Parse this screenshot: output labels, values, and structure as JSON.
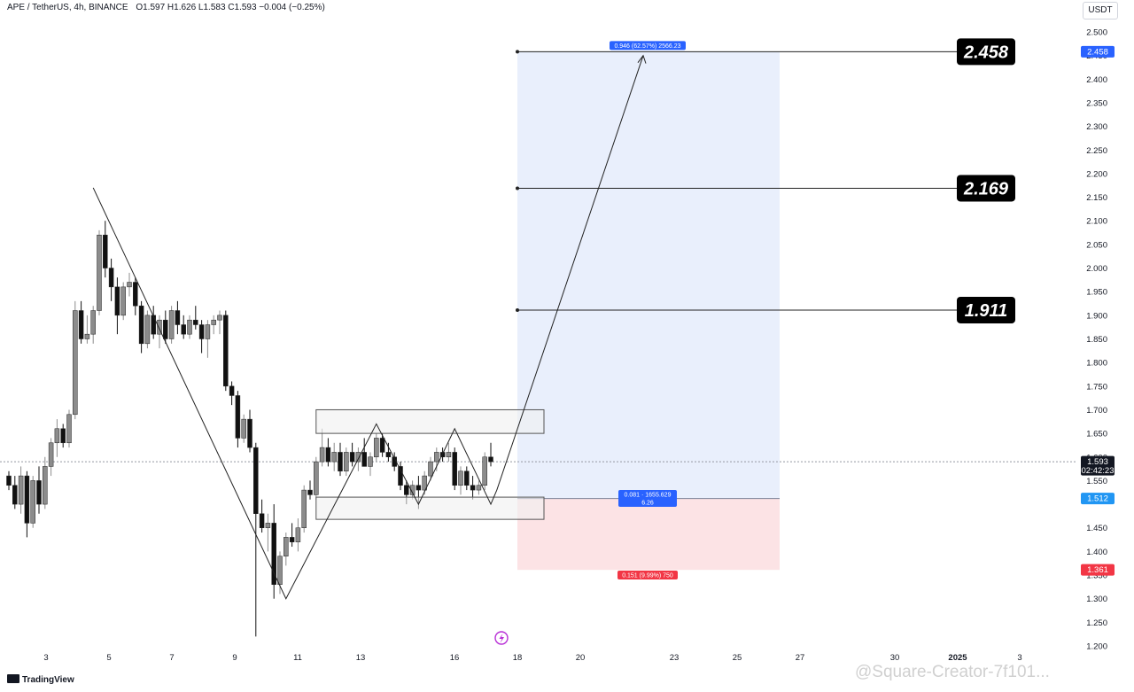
{
  "header": {
    "symbol": "APE / TetherUS, 4h, BINANCE",
    "ohlc": "O1.597  H1.626  L1.583  C1.593  −0.004 (−0.25%)"
  },
  "currency_label": "USDT",
  "footer": {
    "brand": "TradingView"
  },
  "watermark_text": "@Square-Creator-7f101...",
  "colors": {
    "up_candle": "#8c8c8c",
    "down_candle": "#111111",
    "target_zone": "#e9effc",
    "stop_zone": "#fce3e5",
    "label_blue": "#2962ff",
    "label_red": "#f23645",
    "label_current": "#131722"
  },
  "chart_data": {
    "type": "candlestick",
    "title": "APE / TetherUS, 4h, BINANCE",
    "ylim": [
      1.2,
      2.5
    ],
    "grid": false,
    "x_ticks": [
      "3",
      "5",
      "7",
      "9",
      "11",
      "13",
      "16",
      "18",
      "20",
      "23",
      "25",
      "27",
      "30",
      "2025",
      "3"
    ],
    "y_ticks": [
      "2.500",
      "2.450",
      "2.400",
      "2.350",
      "2.300",
      "2.250",
      "2.200",
      "2.150",
      "2.100",
      "2.050",
      "2.000",
      "1.950",
      "1.900",
      "1.850",
      "1.800",
      "1.750",
      "1.700",
      "1.650",
      "1.600",
      "1.550",
      "1.450",
      "1.400",
      "1.350",
      "1.300",
      "1.250",
      "1.200"
    ],
    "ohlc": [
      [
        1.56,
        1.57,
        1.53,
        1.54
      ],
      [
        1.54,
        1.56,
        1.49,
        1.5
      ],
      [
        1.5,
        1.58,
        1.48,
        1.56
      ],
      [
        1.56,
        1.57,
        1.43,
        1.46
      ],
      [
        1.46,
        1.56,
        1.45,
        1.55
      ],
      [
        1.55,
        1.58,
        1.48,
        1.5
      ],
      [
        1.5,
        1.6,
        1.49,
        1.58
      ],
      [
        1.58,
        1.64,
        1.56,
        1.63
      ],
      [
        1.63,
        1.68,
        1.6,
        1.66
      ],
      [
        1.66,
        1.67,
        1.62,
        1.63
      ],
      [
        1.63,
        1.7,
        1.62,
        1.69
      ],
      [
        1.69,
        1.93,
        1.68,
        1.91
      ],
      [
        1.91,
        1.93,
        1.84,
        1.85
      ],
      [
        1.85,
        1.9,
        1.84,
        1.86
      ],
      [
        1.86,
        1.92,
        1.84,
        1.91
      ],
      [
        1.91,
        2.08,
        1.9,
        2.07
      ],
      [
        2.07,
        2.1,
        1.98,
        2.0
      ],
      [
        2.0,
        2.02,
        1.93,
        1.96
      ],
      [
        1.96,
        1.98,
        1.86,
        1.9
      ],
      [
        1.9,
        1.97,
        1.89,
        1.96
      ],
      [
        1.96,
        1.99,
        1.94,
        1.97
      ],
      [
        1.97,
        1.98,
        1.9,
        1.92
      ],
      [
        1.92,
        1.93,
        1.82,
        1.84
      ],
      [
        1.84,
        1.91,
        1.83,
        1.9
      ],
      [
        1.9,
        1.92,
        1.85,
        1.86
      ],
      [
        1.86,
        1.9,
        1.83,
        1.89
      ],
      [
        1.89,
        1.91,
        1.84,
        1.85
      ],
      [
        1.85,
        1.92,
        1.84,
        1.91
      ],
      [
        1.91,
        1.93,
        1.86,
        1.88
      ],
      [
        1.88,
        1.9,
        1.85,
        1.86
      ],
      [
        1.86,
        1.9,
        1.85,
        1.89
      ],
      [
        1.89,
        1.92,
        1.87,
        1.88
      ],
      [
        1.88,
        1.89,
        1.82,
        1.85
      ],
      [
        1.85,
        1.89,
        1.81,
        1.88
      ],
      [
        1.88,
        1.9,
        1.86,
        1.89
      ],
      [
        1.89,
        1.91,
        1.86,
        1.9
      ],
      [
        1.9,
        1.91,
        1.74,
        1.75
      ],
      [
        1.75,
        1.76,
        1.71,
        1.73
      ],
      [
        1.73,
        1.74,
        1.62,
        1.64
      ],
      [
        1.64,
        1.69,
        1.63,
        1.68
      ],
      [
        1.68,
        1.7,
        1.61,
        1.62
      ],
      [
        1.62,
        1.63,
        1.22,
        1.48
      ],
      [
        1.48,
        1.51,
        1.44,
        1.45
      ],
      [
        1.45,
        1.48,
        1.4,
        1.46
      ],
      [
        1.46,
        1.5,
        1.3,
        1.33
      ],
      [
        1.33,
        1.4,
        1.31,
        1.39
      ],
      [
        1.39,
        1.44,
        1.37,
        1.43
      ],
      [
        1.43,
        1.46,
        1.41,
        1.42
      ],
      [
        1.42,
        1.47,
        1.4,
        1.45
      ],
      [
        1.45,
        1.54,
        1.44,
        1.53
      ],
      [
        1.53,
        1.55,
        1.51,
        1.52
      ],
      [
        1.52,
        1.6,
        1.51,
        1.59
      ],
      [
        1.59,
        1.66,
        1.58,
        1.62
      ],
      [
        1.62,
        1.64,
        1.58,
        1.59
      ],
      [
        1.59,
        1.63,
        1.57,
        1.61
      ],
      [
        1.61,
        1.63,
        1.56,
        1.57
      ],
      [
        1.57,
        1.62,
        1.56,
        1.61
      ],
      [
        1.61,
        1.63,
        1.58,
        1.59
      ],
      [
        1.59,
        1.62,
        1.57,
        1.61
      ],
      [
        1.61,
        1.64,
        1.58,
        1.58
      ],
      [
        1.58,
        1.61,
        1.56,
        1.6
      ],
      [
        1.6,
        1.65,
        1.59,
        1.64
      ],
      [
        1.64,
        1.65,
        1.6,
        1.61
      ],
      [
        1.61,
        1.63,
        1.59,
        1.6
      ],
      [
        1.6,
        1.61,
        1.57,
        1.58
      ],
      [
        1.58,
        1.59,
        1.53,
        1.54
      ],
      [
        1.54,
        1.55,
        1.5,
        1.52
      ],
      [
        1.52,
        1.55,
        1.51,
        1.54
      ],
      [
        1.54,
        1.56,
        1.49,
        1.53
      ],
      [
        1.53,
        1.57,
        1.52,
        1.56
      ],
      [
        1.56,
        1.6,
        1.55,
        1.59
      ],
      [
        1.59,
        1.62,
        1.57,
        1.61
      ],
      [
        1.61,
        1.62,
        1.59,
        1.6
      ],
      [
        1.6,
        1.63,
        1.59,
        1.61
      ],
      [
        1.61,
        1.62,
        1.53,
        1.54
      ],
      [
        1.54,
        1.58,
        1.52,
        1.57
      ],
      [
        1.57,
        1.58,
        1.53,
        1.54
      ],
      [
        1.54,
        1.56,
        1.51,
        1.53
      ],
      [
        1.53,
        1.55,
        1.52,
        1.54
      ],
      [
        1.54,
        1.61,
        1.53,
        1.6
      ],
      [
        1.6,
        1.63,
        1.58,
        1.59
      ]
    ],
    "current_price": "1.593",
    "countdown": "02:42:23",
    "targets": [
      "1.911",
      "2.169",
      "2.458"
    ],
    "target_values": [
      1.911,
      2.169,
      2.458
    ],
    "take_profit": "2.458",
    "entry": "1.512",
    "stop_loss": "1.361",
    "take_profit_value": 2.458,
    "entry_value": 1.512,
    "stop_loss_value": 1.361,
    "tp_label": "0.946 (62.57%) 2566.23",
    "entry_label_line1": "0.081 · 1655.629",
    "entry_label_line2": "6.26",
    "sl_label": "0.151 (9.99%) 750",
    "zigzag_pattern": [
      [
        2.17,
        0
      ],
      [
        1.31,
        1
      ],
      [
        1.67,
        2
      ],
      [
        1.5,
        3
      ],
      [
        1.66,
        4
      ],
      [
        1.5,
        5
      ]
    ]
  }
}
